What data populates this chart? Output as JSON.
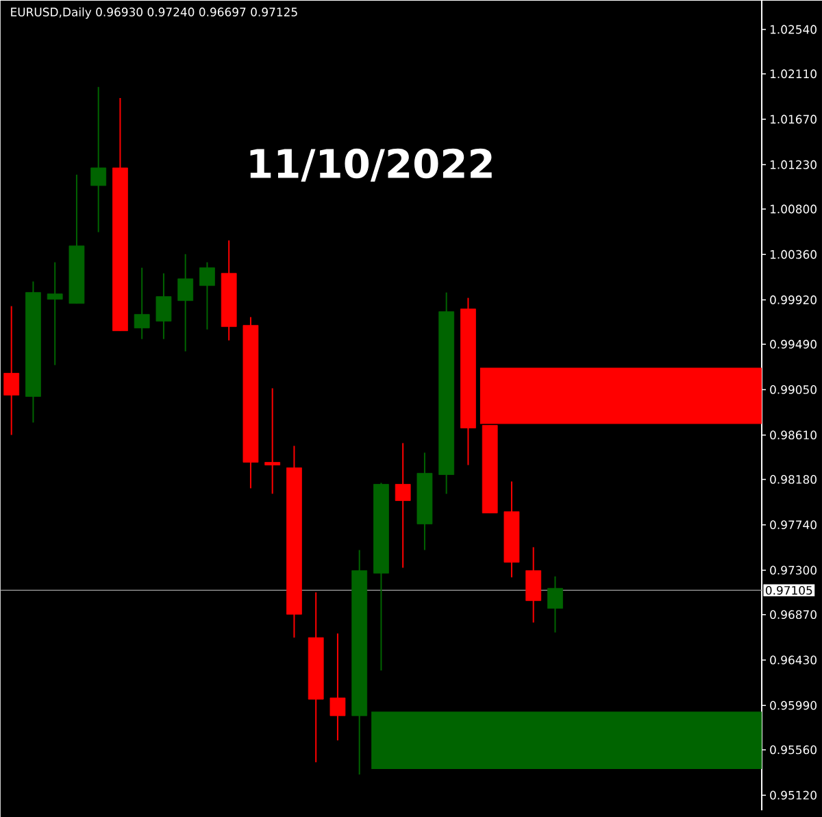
{
  "chart_data": {
    "type": "candlestick",
    "title": "EURUSD,Daily  0.96930 0.97240 0.96697 0.97125",
    "annotations": [
      "11/10/2022"
    ],
    "categories": [
      null,
      null,
      null,
      null,
      null,
      null,
      null,
      null,
      null,
      null,
      null,
      null,
      null,
      null,
      null,
      null,
      null,
      null,
      null,
      null,
      null,
      null,
      null,
      null,
      null,
      null,
      null,
      null,
      null,
      null,
      null,
      null,
      null,
      null,
      null
    ],
    "ohlc": [
      [
        0.99209,
        0.99859,
        0.98611,
        0.98996
      ],
      [
        0.98983,
        1.00098,
        0.98731,
        0.99992
      ],
      [
        0.99925,
        1.00284,
        0.99288,
        0.99978
      ],
      [
        0.99885,
        1.01133,
        0.99885,
        1.00443
      ],
      [
        1.01027,
        1.01983,
        1.00576,
        1.01199
      ],
      [
        1.01199,
        1.01876,
        0.9962,
        0.9962
      ],
      [
        0.99647,
        1.00231,
        0.9954,
        0.99779
      ],
      [
        0.99713,
        1.00177,
        0.9954,
        0.99952
      ],
      [
        0.99912,
        1.00363,
        0.99421,
        1.00124
      ],
      [
        1.00058,
        1.00284,
        0.99633,
        1.00231
      ],
      [
        1.00177,
        1.00496,
        0.99527,
        0.9966
      ],
      [
        0.99673,
        0.99753,
        0.98094,
        0.98346
      ],
      [
        0.98346,
        0.99063,
        0.98041,
        0.98319
      ],
      [
        0.98293,
        0.98505,
        0.96647,
        0.96873
      ],
      [
        0.96647,
        0.97085,
        0.95439,
        0.9605
      ],
      [
        0.96063,
        0.96687,
        0.95651,
        0.9589
      ],
      [
        0.9589,
        0.97496,
        0.9532,
        0.97297
      ],
      [
        0.97271,
        0.98147,
        0.96328,
        0.98133
      ],
      [
        0.98133,
        0.98532,
        0.97324,
        0.97974
      ],
      [
        0.97748,
        0.98439,
        0.97496,
        0.9824
      ],
      [
        0.98226,
        0.99992,
        0.98041,
        0.99806
      ],
      [
        0.99832,
        0.99939,
        0.98319,
        0.98678
      ],
      [
        0.98704,
        0.98704,
        0.97855,
        0.97855
      ],
      [
        0.97868,
        0.9816,
        0.97231,
        0.97377
      ],
      [
        0.97297,
        0.97523,
        0.96793,
        0.97005
      ],
      [
        0.9693,
        0.9724,
        0.96697,
        0.97125
      ],
      null,
      null,
      null,
      null,
      null,
      null,
      null,
      null,
      null
    ],
    "colors": [
      "#ff0000",
      "#006400",
      "#006400",
      "#006400",
      "#006400",
      "#ff0000",
      "#006400",
      "#006400",
      "#006400",
      "#006400",
      "#ff0000",
      "#ff0000",
      "#ff0000",
      "#ff0000",
      "#ff0000",
      "#ff0000",
      "#006400",
      "#006400",
      "#ff0000",
      "#006400",
      "#006400",
      "#ff0000",
      "#ff0000",
      "#ff0000",
      "#ff0000",
      "#006400",
      null,
      null,
      null,
      null,
      null,
      null,
      null,
      null,
      null
    ],
    "ylim": [
      0.94974,
      1.02819
    ],
    "yticks": [
      {
        "value": 1.0254,
        "label": "1.02540"
      },
      {
        "value": 1.0211,
        "label": "1.02110"
      },
      {
        "value": 1.0167,
        "label": "1.01670"
      },
      {
        "value": 1.0123,
        "label": "1.01230"
      },
      {
        "value": 1.008,
        "label": "1.00800"
      },
      {
        "value": 1.0036,
        "label": "1.00360"
      },
      {
        "value": 0.9992,
        "label": "0.99920"
      },
      {
        "value": 0.9949,
        "label": "0.99490"
      },
      {
        "value": 0.9905,
        "label": "0.99050"
      },
      {
        "value": 0.9861,
        "label": "0.98610"
      },
      {
        "value": 0.9818,
        "label": "0.98180"
      },
      {
        "value": 0.9774,
        "label": "0.97740"
      },
      {
        "value": 0.973,
        "label": "0.97300"
      },
      {
        "value": 0.9687,
        "label": "0.96870"
      },
      {
        "value": 0.9643,
        "label": "0.96430"
      },
      {
        "value": 0.9599,
        "label": "0.95990"
      },
      {
        "value": 0.9556,
        "label": "0.95560"
      },
      {
        "value": 0.9512,
        "label": "0.95120"
      }
    ],
    "ref_lines": [
      {
        "axis": "y",
        "value": 0.97105,
        "label": "0.97105",
        "color": "#8c8c8c"
      }
    ],
    "bands": [
      {
        "axis": "y",
        "from": 0.98717,
        "to": 0.99262,
        "color": "#ff0000"
      },
      {
        "axis": "y",
        "from": 0.95373,
        "to": 0.9593,
        "color": "#006400"
      }
    ],
    "tick_labels": "y",
    "grid": false
  }
}
